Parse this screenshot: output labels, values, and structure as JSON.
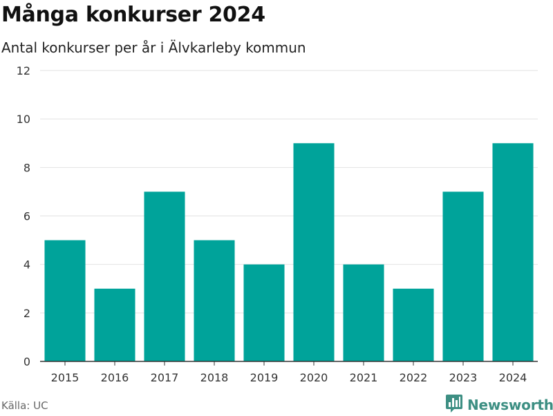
{
  "header": {
    "title": "Många konkurser 2024",
    "subtitle": "Antal konkurser per år i Älvkarleby kommun"
  },
  "footer": {
    "source": "Källa: UC",
    "brand": "Newsworthy"
  },
  "colors": {
    "bar": "#00a39a",
    "grid": "#e2e2e2",
    "axis": "#333333",
    "brand": "#3d8f83"
  },
  "icons": {
    "brand_logo": "bar-chart-speech-bubble-icon"
  },
  "chart_data": {
    "type": "bar",
    "title": "Många konkurser 2024",
    "subtitle": "Antal konkurser per år i Älvkarleby kommun",
    "categories": [
      "2015",
      "2016",
      "2017",
      "2018",
      "2019",
      "2020",
      "2021",
      "2022",
      "2023",
      "2024"
    ],
    "values": [
      5,
      3,
      7,
      5,
      4,
      9,
      4,
      3,
      7,
      9
    ],
    "xlabel": "",
    "ylabel": "",
    "ylim": [
      0,
      12
    ],
    "yticks": [
      0,
      2,
      4,
      6,
      8,
      10,
      12
    ],
    "grid": true,
    "legend": "none"
  }
}
